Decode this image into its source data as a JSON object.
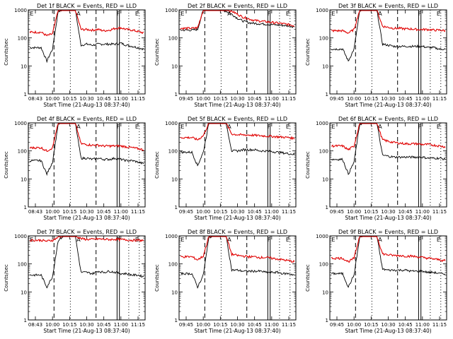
{
  "figure": {
    "start_time_label": "Start Time (21-Aug-13 08:37:40)",
    "ylabel": "Counts/sec"
  },
  "marker_labels": [
    "E",
    "A",
    "F",
    "E"
  ],
  "colors": {
    "events": "#000000",
    "lld": "#e00000",
    "axis": "#000000"
  },
  "chart_data": [
    {
      "type": "line",
      "title": "Det 1f BLACK = Events, RED = LLD",
      "xticks": [
        "08:43",
        "10:00",
        "10:15",
        "10:30",
        "10:45",
        "11:00",
        "11:15"
      ],
      "yscale": "log",
      "ylim": [
        1,
        1000
      ],
      "yticks": [
        "1",
        "10",
        "100",
        "1000"
      ],
      "series": [
        {
          "name": "Events",
          "values": [
            45,
            45,
            45,
            15,
            40,
            900,
            1000,
            1000,
            1000,
            55,
            60,
            55,
            60,
            60,
            60,
            60,
            65,
            55,
            50,
            45,
            40
          ]
        },
        {
          "name": "LLD",
          "values": [
            160,
            160,
            160,
            120,
            140,
            1000,
            1000,
            1000,
            1000,
            200,
            200,
            190,
            200,
            180,
            190,
            220,
            230,
            200,
            190,
            170,
            150
          ]
        }
      ]
    },
    {
      "type": "line",
      "title": "Det 2f BLACK = Events, RED = LLD",
      "xticks": [
        "09:45",
        "10:00",
        "10:15",
        "10:30",
        "10:45",
        "11:00",
        "11:15"
      ],
      "yscale": "log",
      "ylim": [
        1,
        1000
      ],
      "yticks": [
        "1",
        "10",
        "100",
        "1000"
      ],
      "series": [
        {
          "name": "Events",
          "values": [
            190,
            190,
            190,
            200,
            1000,
            1000,
            1000,
            1000,
            900,
            700,
            500,
            400,
            350,
            330,
            320,
            310,
            300,
            290,
            280,
            270,
            250
          ]
        },
        {
          "name": "LLD",
          "values": [
            220,
            220,
            220,
            230,
            1000,
            1000,
            1000,
            1000,
            1000,
            900,
            700,
            550,
            480,
            420,
            400,
            380,
            360,
            340,
            320,
            300,
            270
          ]
        }
      ]
    },
    {
      "type": "line",
      "title": "Det 3f BLACK = Events, RED = LLD",
      "xticks": [
        "09:45",
        "10:00",
        "10:15",
        "10:30",
        "10:45",
        "11:00",
        "11:15"
      ],
      "yscale": "log",
      "ylim": [
        1,
        1000
      ],
      "yticks": [
        "1",
        "10",
        "100",
        "1000"
      ],
      "series": [
        {
          "name": "Events",
          "values": [
            40,
            40,
            40,
            15,
            40,
            900,
            1000,
            1000,
            1000,
            60,
            55,
            50,
            50,
            50,
            50,
            50,
            50,
            45,
            45,
            40,
            40
          ]
        },
        {
          "name": "LLD",
          "values": [
            180,
            180,
            180,
            150,
            200,
            1000,
            1000,
            1000,
            1000,
            260,
            240,
            220,
            220,
            210,
            210,
            200,
            200,
            200,
            190,
            190,
            180
          ]
        }
      ]
    },
    {
      "type": "line",
      "title": "Det 4f BLACK = Events, RED = LLD",
      "xticks": [
        "08:43",
        "10:00",
        "10:15",
        "10:30",
        "10:45",
        "11:00",
        "11:15"
      ],
      "yscale": "log",
      "ylim": [
        1,
        1000
      ],
      "yticks": [
        "1",
        "10",
        "100",
        "1000"
      ],
      "series": [
        {
          "name": "Events",
          "values": [
            45,
            45,
            45,
            15,
            40,
            900,
            1000,
            1000,
            1000,
            55,
            55,
            50,
            55,
            50,
            50,
            55,
            50,
            45,
            45,
            40,
            35
          ]
        },
        {
          "name": "LLD",
          "values": [
            130,
            130,
            130,
            100,
            130,
            1000,
            1000,
            1000,
            1000,
            180,
            170,
            160,
            160,
            150,
            150,
            150,
            150,
            140,
            130,
            120,
            110
          ]
        }
      ]
    },
    {
      "type": "line",
      "title": "Det 5f BLACK = Events, RED = LLD",
      "xticks": [
        "09:45",
        "10:00",
        "10:15",
        "10:30",
        "10:45",
        "11:00",
        "11:15"
      ],
      "yscale": "log",
      "ylim": [
        1,
        1000
      ],
      "yticks": [
        "1",
        "10",
        "100",
        "1000"
      ],
      "series": [
        {
          "name": "Events",
          "values": [
            90,
            90,
            90,
            30,
            90,
            1000,
            1000,
            1000,
            1000,
            100,
            100,
            110,
            110,
            110,
            100,
            100,
            95,
            90,
            85,
            80,
            75
          ]
        },
        {
          "name": "LLD",
          "values": [
            300,
            300,
            300,
            250,
            350,
            1000,
            1000,
            1000,
            1000,
            400,
            380,
            370,
            370,
            360,
            350,
            340,
            330,
            320,
            310,
            300,
            280
          ]
        }
      ]
    },
    {
      "type": "line",
      "title": "Det 6f BLACK = Events, RED = LLD",
      "xticks": [
        "09:45",
        "10:00",
        "10:15",
        "10:30",
        "10:45",
        "11:00",
        "11:15"
      ],
      "yscale": "log",
      "ylim": [
        1,
        1000
      ],
      "yticks": [
        "1",
        "10",
        "100",
        "1000"
      ],
      "series": [
        {
          "name": "Events",
          "values": [
            50,
            50,
            50,
            15,
            40,
            900,
            1000,
            1000,
            1000,
            70,
            65,
            60,
            60,
            60,
            60,
            60,
            60,
            55,
            55,
            55,
            50
          ]
        },
        {
          "name": "LLD",
          "values": [
            150,
            150,
            150,
            110,
            150,
            1000,
            1000,
            1000,
            1000,
            250,
            220,
            200,
            190,
            180,
            180,
            180,
            170,
            170,
            160,
            150,
            140
          ]
        }
      ]
    },
    {
      "type": "line",
      "title": "Det 7f BLACK = Events, RED = LLD",
      "xticks": [
        "08:43",
        "10:00",
        "10:15",
        "10:30",
        "10:45",
        "11:00",
        "11:15"
      ],
      "yscale": "log",
      "ylim": [
        1,
        1000
      ],
      "yticks": [
        "1",
        "10",
        "100",
        "1000"
      ],
      "series": [
        {
          "name": "Events",
          "values": [
            40,
            40,
            40,
            15,
            35,
            700,
            1000,
            1000,
            1000,
            50,
            50,
            45,
            55,
            50,
            55,
            50,
            45,
            45,
            40,
            40,
            35
          ]
        },
        {
          "name": "LLD",
          "values": [
            700,
            700,
            700,
            650,
            700,
            900,
            1000,
            1000,
            1000,
            800,
            750,
            750,
            780,
            760,
            740,
            760,
            740,
            720,
            700,
            700,
            680
          ]
        }
      ]
    },
    {
      "type": "line",
      "title": "Det 8f BLACK = Events, RED = LLD",
      "xticks": [
        "09:45",
        "10:00",
        "10:15",
        "10:30",
        "10:45",
        "11:00",
        "11:15"
      ],
      "yscale": "log",
      "ylim": [
        1,
        1000
      ],
      "yticks": [
        "1",
        "10",
        "100",
        "1000"
      ],
      "series": [
        {
          "name": "Events",
          "values": [
            45,
            45,
            45,
            15,
            40,
            900,
            1000,
            1000,
            1000,
            60,
            60,
            55,
            55,
            55,
            55,
            50,
            50,
            50,
            45,
            45,
            40
          ]
        },
        {
          "name": "LLD",
          "values": [
            180,
            180,
            180,
            140,
            190,
            1000,
            1000,
            1000,
            1000,
            220,
            200,
            190,
            180,
            180,
            170,
            170,
            160,
            150,
            140,
            130,
            120
          ]
        }
      ]
    },
    {
      "type": "line",
      "title": "Det 9f BLACK = Events, RED = LLD",
      "xticks": [
        "09:45",
        "10:00",
        "10:15",
        "10:30",
        "10:45",
        "11:00",
        "11:15"
      ],
      "yscale": "log",
      "ylim": [
        1,
        1000
      ],
      "yticks": [
        "1",
        "10",
        "100",
        "1000"
      ],
      "series": [
        {
          "name": "Events",
          "values": [
            45,
            45,
            45,
            15,
            40,
            900,
            1000,
            1000,
            1000,
            65,
            60,
            60,
            60,
            60,
            55,
            55,
            55,
            50,
            50,
            45,
            45
          ]
        },
        {
          "name": "LLD",
          "values": [
            160,
            160,
            160,
            120,
            160,
            1000,
            1000,
            1000,
            1000,
            230,
            210,
            200,
            200,
            190,
            190,
            180,
            170,
            160,
            150,
            140,
            130
          ]
        }
      ]
    }
  ]
}
